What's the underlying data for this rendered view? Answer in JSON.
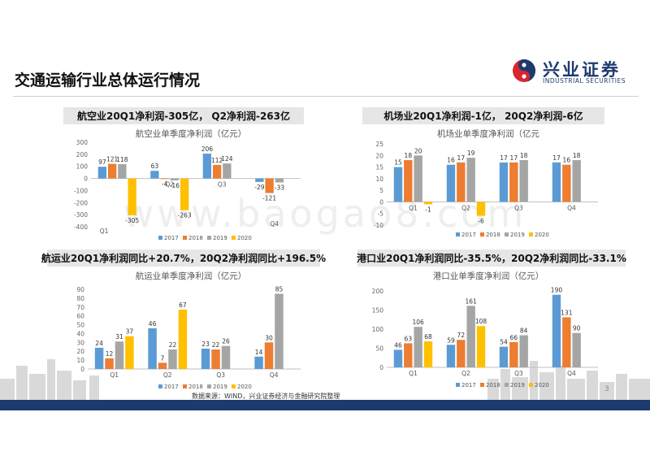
{
  "page": {
    "title": "交通运输行业总体运行情况",
    "source": "数据来源：WIND，兴业证券经济与金融研究院整理",
    "page_number": "3",
    "watermark": "www.baogao8.com"
  },
  "logo": {
    "cn": "兴业证券",
    "en": "INDUSTRIAL SECURITIES",
    "colors": {
      "red": "#d7262e",
      "blue": "#1d3a6e"
    }
  },
  "colors": {
    "2017": "#5b9bd5",
    "2018": "#ed7d31",
    "2019": "#a5a5a5",
    "2020": "#ffc000",
    "banner_bg": "#e6e6e6",
    "navy": "#1d3a6e"
  },
  "panels": [
    {
      "banner": "航空业20Q1净利润-305亿， Q2净利润-263亿"
    },
    {
      "banner": "机场业20Q1净利润-1亿， 20Q2净利润-6亿"
    },
    {
      "banner": "航运业20Q1净利润同比+20.7%，20Q2净利润同比+196.5%"
    },
    {
      "banner": "港口业20Q1净利润同比-35.5%，20Q2净利润同比-33.1%"
    }
  ],
  "chart_data": [
    {
      "type": "bar",
      "title": "航空业单季度净利润（亿元）",
      "categories": [
        "Q1",
        "Q2",
        "Q3",
        "Q4"
      ],
      "series": [
        {
          "name": "2017",
          "values": [
            97,
            63,
            206,
            -29
          ]
        },
        {
          "name": "2018",
          "values": [
            121,
            -4,
            112,
            -121
          ]
        },
        {
          "name": "2019",
          "values": [
            118,
            -16,
            124,
            -33
          ]
        },
        {
          "name": "2020",
          "values": [
            -305,
            -263,
            null,
            null
          ]
        }
      ],
      "ylim": [
        -400,
        300
      ],
      "yticks": [
        -400,
        -300,
        -200,
        -100,
        0,
        100,
        200,
        300
      ],
      "legend": "bottom",
      "grid": false
    },
    {
      "type": "bar",
      "title": "机场业单季度净利润（亿元",
      "categories": [
        "Q1",
        "Q2",
        "Q3",
        "Q4"
      ],
      "series": [
        {
          "name": "2017",
          "values": [
            15,
            16,
            17,
            17
          ]
        },
        {
          "name": "2018",
          "values": [
            18,
            17,
            17,
            16
          ]
        },
        {
          "name": "2019",
          "values": [
            20,
            19,
            18,
            18
          ]
        },
        {
          "name": "2020",
          "values": [
            -1,
            -6,
            null,
            null
          ]
        }
      ],
      "ylim": [
        -10,
        25
      ],
      "yticks": [
        -10,
        -5,
        0,
        5,
        10,
        15,
        20,
        25
      ],
      "legend": "bottom",
      "grid": false
    },
    {
      "type": "bar",
      "title": "航运业单季度净利润（亿元）",
      "categories": [
        "Q1",
        "Q2",
        "Q3",
        "Q4"
      ],
      "series": [
        {
          "name": "2017",
          "values": [
            24,
            46,
            23,
            14
          ]
        },
        {
          "name": "2018",
          "values": [
            12,
            7,
            22,
            30
          ]
        },
        {
          "name": "2019",
          "values": [
            31,
            22,
            26,
            85
          ]
        },
        {
          "name": "2020",
          "values": [
            37,
            67,
            null,
            null
          ]
        }
      ],
      "ylim": [
        0,
        90
      ],
      "yticks": [
        0,
        10,
        20,
        30,
        40,
        50,
        60,
        70,
        80,
        90
      ],
      "legend": "bottom",
      "grid": false
    },
    {
      "type": "bar",
      "title": "港口业单季度净利润（亿元）",
      "categories": [
        "Q1",
        "Q2",
        "Q3",
        "Q4"
      ],
      "series": [
        {
          "name": "2017",
          "values": [
            46,
            59,
            54,
            190
          ]
        },
        {
          "name": "2018",
          "values": [
            63,
            72,
            66,
            131
          ]
        },
        {
          "name": "2019",
          "values": [
            106,
            161,
            84,
            90
          ]
        },
        {
          "name": "2020",
          "values": [
            68,
            108,
            null,
            null
          ]
        }
      ],
      "ylim": [
        0,
        200
      ],
      "yticks": [
        0,
        50,
        100,
        150,
        200
      ],
      "legend": "bottom",
      "grid": false
    }
  ]
}
